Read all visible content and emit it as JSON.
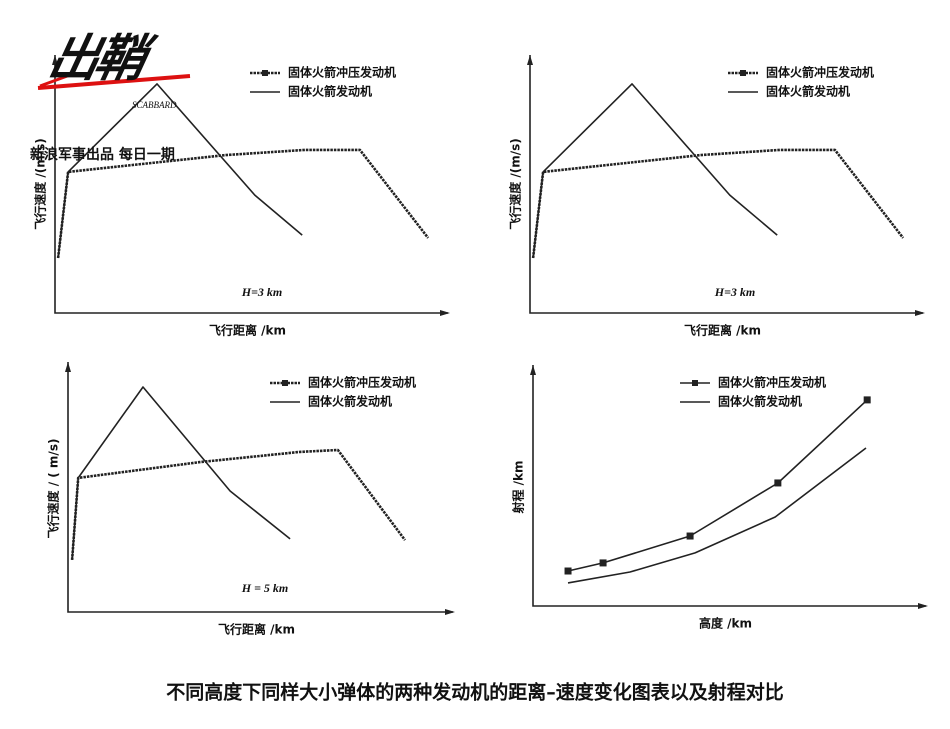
{
  "watermark": {
    "logo": "出鞘",
    "logo_sub": "SCABBARD",
    "tagline": "新浪军事出品 每日一期"
  },
  "caption": "不同高度下同样大小弹体的两种发动机的距离–速度变化图表以及射程对比",
  "chart_data": [
    {
      "type": "line",
      "ylabel": "飞行速度 /(m/s)",
      "xlabel": "飞行距离 /km",
      "annotation": "H=3 km",
      "legend": "upper right",
      "xlim": [
        0,
        100
      ],
      "ylim": [
        0,
        100
      ],
      "series": [
        {
          "name": "固体火箭冲压发动机",
          "color": "#222222",
          "style": "dotted",
          "x": [
            0.8,
            3.4,
            44.2,
            64.9,
            79.2,
            96.9
          ],
          "values": [
            21.3,
            54.7,
            61.2,
            63.2,
            63.2,
            29.1
          ]
        },
        {
          "name": "固体火箭发动机",
          "color": "#222222",
          "style": "solid",
          "x": [
            0.8,
            3.4,
            26.5,
            51.9,
            64.2
          ],
          "values": [
            21.3,
            54.7,
            88.8,
            45.7,
            30.2
          ]
        }
      ]
    },
    {
      "type": "line",
      "ylabel": "飞行速度 /(m/s)",
      "xlabel": "飞行距离 /km",
      "annotation": "H=3 km",
      "legend": "upper right",
      "xlim": [
        0,
        100
      ],
      "ylim": [
        0,
        100
      ],
      "series": [
        {
          "name": "固体火箭冲压发动机",
          "color": "#222222",
          "style": "dotted",
          "x": [
            0.8,
            3.4,
            44.2,
            64.9,
            79.2,
            96.9
          ],
          "values": [
            21.3,
            54.7,
            61.2,
            63.2,
            63.2,
            29.1
          ]
        },
        {
          "name": "固体火箭发动机",
          "color": "#222222",
          "style": "solid",
          "x": [
            0.8,
            3.4,
            26.5,
            51.9,
            64.2
          ],
          "values": [
            21.3,
            54.7,
            88.8,
            45.7,
            30.2
          ]
        }
      ]
    },
    {
      "type": "line",
      "ylabel": "飞行速度 / ( m/s)",
      "xlabel": "飞行距离 /km",
      "annotation": "H = 5 km",
      "legend": "upper right",
      "xlim": [
        0,
        100
      ],
      "ylim": [
        0,
        100
      ],
      "series": [
        {
          "name": "固体火箭冲压发动机",
          "color": "#222222",
          "style": "dotted",
          "x": [
            1.1,
            2.7,
            35.0,
            61.5,
            71.6,
            89.4
          ],
          "values": [
            21.1,
            54.3,
            60.7,
            64.8,
            65.6,
            29.1
          ]
        },
        {
          "name": "固体火箭发动机",
          "color": "#222222",
          "style": "solid",
          "x": [
            1.1,
            2.7,
            19.9,
            43.0,
            58.9
          ],
          "values": [
            21.1,
            54.3,
            91.1,
            49.0,
            29.6
          ]
        }
      ]
    },
    {
      "type": "line",
      "ylabel": "射程 /km",
      "xlabel": "高度 /km",
      "legend": "upper right",
      "xlim": [
        0,
        100
      ],
      "ylim": [
        0,
        100
      ],
      "series": [
        {
          "name": "固体火箭冲压发动机",
          "color": "#222222",
          "style": "solid",
          "marker": "square",
          "x": [
            9.1,
            18.2,
            40.8,
            63.6,
            86.8
          ],
          "values": [
            14.7,
            18.1,
            29.4,
            51.7,
            86.6
          ]
        },
        {
          "name": "固体火箭发动机",
          "color": "#222222",
          "style": "solid",
          "x": [
            9.1,
            25.2,
            42.1,
            62.9,
            86.5
          ],
          "values": [
            9.7,
            14.3,
            22.3,
            37.4,
            66.4
          ]
        }
      ]
    }
  ]
}
